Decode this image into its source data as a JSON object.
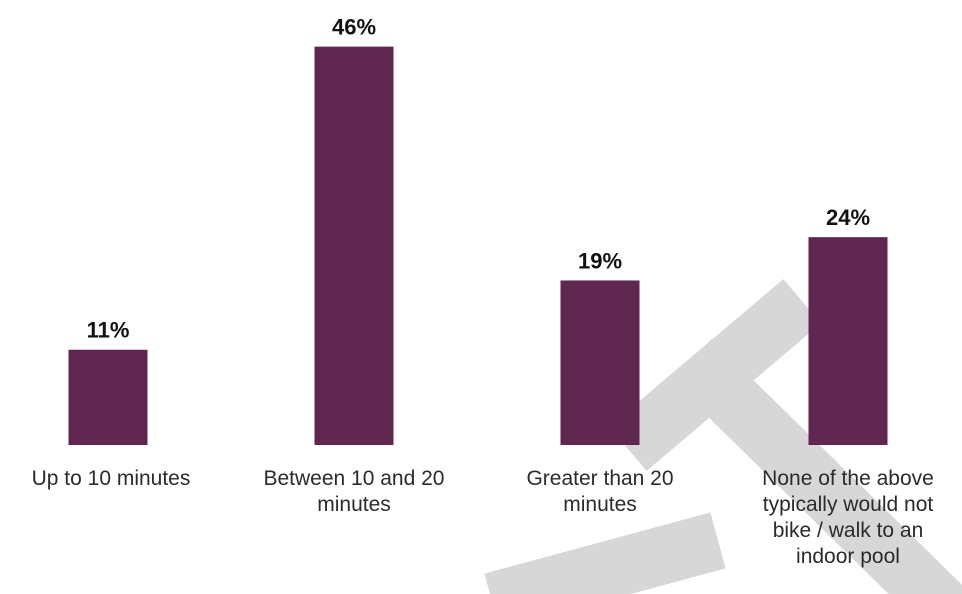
{
  "colors": {
    "bar": "#5f2650",
    "value_text": "#111111",
    "category_text": "#2b2b2b",
    "watermark": "#d7d7d7"
  },
  "chart_data": {
    "type": "bar",
    "categories": [
      "Up to 10 minutes",
      "Between 10 and 20 minutes",
      "Greater than 20 minutes",
      "None of the above typically would not bike / walk to an indoor pool"
    ],
    "category_lines": [
      [
        "Up to 10 minutes"
      ],
      [
        "Between 10 and 20",
        "minutes"
      ],
      [
        "Greater than 20",
        "minutes"
      ],
      [
        "None of the above",
        "typically would not",
        "bike / walk to an",
        "indoor pool"
      ]
    ],
    "values": [
      11,
      46,
      19,
      24
    ],
    "value_labels": [
      "11%",
      "46%",
      "19%",
      "24%"
    ],
    "unit": "%",
    "ylim": [
      0,
      50
    ],
    "grid": false,
    "legend": "none",
    "title": "",
    "xlabel": "",
    "ylabel": ""
  },
  "watermark": {
    "depicts": "diagonal grey letters logo watermark"
  }
}
